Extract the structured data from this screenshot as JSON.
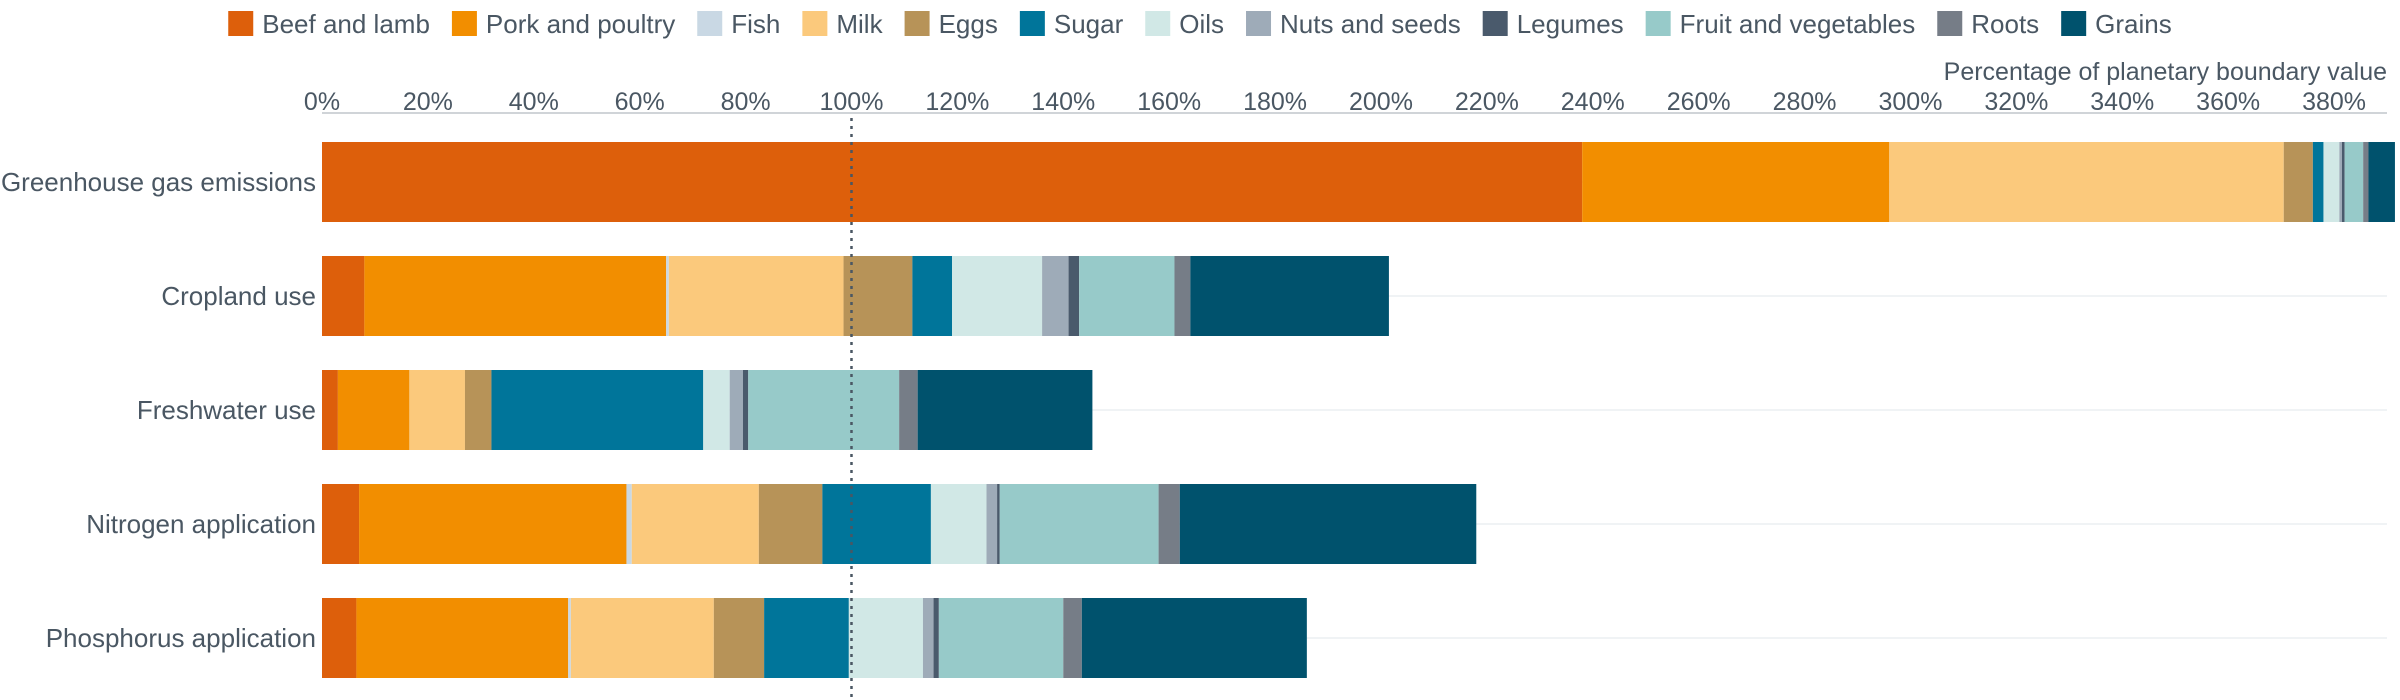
{
  "chart_data": {
    "type": "bar",
    "orientation": "horizontal",
    "stacked": true,
    "title": "",
    "xlabel": "Percentage of planetary boundary value",
    "xlabel_position": "top-right",
    "xlim": [
      0,
      390
    ],
    "x_ticks": [
      0,
      20,
      40,
      60,
      80,
      100,
      120,
      140,
      160,
      180,
      200,
      220,
      240,
      260,
      280,
      300,
      320,
      340,
      360,
      380
    ],
    "tick_suffix": "%",
    "reference_line": {
      "value": 100,
      "style": "dotted"
    },
    "grid": "horizontal-light",
    "legend_position": "top",
    "categories": [
      "Greenhouse gas emissions",
      "Cropland use",
      "Freshwater use",
      "Nitrogen application",
      "Phosphorus application"
    ],
    "series": [
      {
        "name": "Beef and lamb",
        "color": "#dd5f0b",
        "values": [
          238,
          8,
          3,
          7,
          6.5
        ]
      },
      {
        "name": "Pork and poultry",
        "color": "#f28e00",
        "values": [
          58,
          57,
          13.5,
          50.5,
          40
        ]
      },
      {
        "name": "Fish",
        "color": "#c9d8e4",
        "values": [
          0,
          0.5,
          0,
          1,
          0.5
        ]
      },
      {
        "name": "Milk",
        "color": "#fbc97c",
        "values": [
          74.5,
          33,
          10.5,
          24,
          27
        ]
      },
      {
        "name": "Eggs",
        "color": "#b79358",
        "values": [
          5.5,
          13,
          5,
          12,
          9.5
        ]
      },
      {
        "name": "Sugar",
        "color": "#00759a",
        "values": [
          2,
          7.5,
          40,
          20.5,
          16
        ]
      },
      {
        "name": "Oils",
        "color": "#d1e8e6",
        "values": [
          3,
          17,
          5,
          10.5,
          14
        ]
      },
      {
        "name": "Nuts and seeds",
        "color": "#9eabb8",
        "values": [
          0.5,
          5,
          2.5,
          2,
          2
        ]
      },
      {
        "name": "Legumes",
        "color": "#4a5a6c",
        "values": [
          0.5,
          2,
          1,
          0.5,
          1
        ]
      },
      {
        "name": "Fruit and vegetables",
        "color": "#97cac9",
        "values": [
          3.5,
          18,
          28.5,
          30,
          23.5
        ]
      },
      {
        "name": "Roots",
        "color": "#767d87",
        "values": [
          1,
          3,
          3.5,
          4,
          3.5
        ]
      },
      {
        "name": "Grains",
        "color": "#00526d",
        "values": [
          5,
          37.5,
          33,
          56,
          42.5
        ]
      }
    ]
  }
}
